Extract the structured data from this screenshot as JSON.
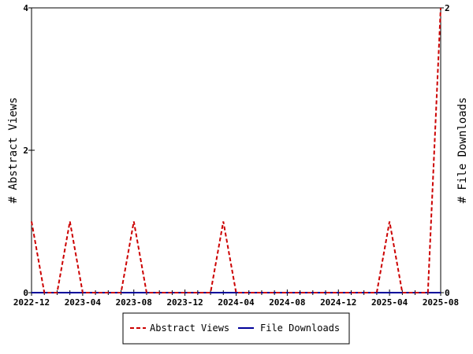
{
  "chart_data": {
    "type": "line",
    "x": [
      "2022-12",
      "2023-01",
      "2023-02",
      "2023-03",
      "2023-04",
      "2023-05",
      "2023-06",
      "2023-07",
      "2023-08",
      "2023-09",
      "2023-10",
      "2023-11",
      "2023-12",
      "2024-01",
      "2024-02",
      "2024-03",
      "2024-04",
      "2024-05",
      "2024-06",
      "2024-07",
      "2024-08",
      "2024-09",
      "2024-10",
      "2024-11",
      "2024-12",
      "2025-01",
      "2025-02",
      "2025-03",
      "2025-04",
      "2025-05",
      "2025-06",
      "2025-07",
      "2025-08"
    ],
    "x_tick_labels": [
      "2022-12",
      "2023-04",
      "2023-08",
      "2023-12",
      "2024-04",
      "2024-08",
      "2024-12",
      "2025-04",
      "2025-08"
    ],
    "series": [
      {
        "name": "Abstract Views",
        "axis": "left",
        "color": "#cc0000",
        "dash": "dashed",
        "values": [
          1,
          0,
          0,
          1,
          0,
          0,
          0,
          0,
          1,
          0,
          0,
          0,
          0,
          0,
          0,
          1,
          0,
          0,
          0,
          0,
          0,
          0,
          0,
          0,
          0,
          0,
          0,
          0,
          1,
          0,
          0,
          0,
          4
        ]
      },
      {
        "name": "File Downloads",
        "axis": "left",
        "color": "#000099",
        "dash": "solid",
        "values": [
          0,
          0,
          0,
          0,
          0,
          0,
          0,
          0,
          0,
          0,
          0,
          0,
          0,
          0,
          0,
          0,
          0,
          0,
          0,
          0,
          0,
          0,
          0,
          0,
          0,
          0,
          0,
          0,
          0,
          0,
          0,
          0,
          0
        ]
      }
    ],
    "ylabel": "# Abstract Views",
    "y2label": "# File Downloads",
    "ylim": [
      0,
      4
    ],
    "y_ticks": [
      "0",
      "2",
      "4"
    ],
    "y2lim": [
      0,
      2
    ],
    "y2_ticks": [
      "0",
      "2"
    ],
    "grid": false,
    "legend_position": "bottom"
  }
}
